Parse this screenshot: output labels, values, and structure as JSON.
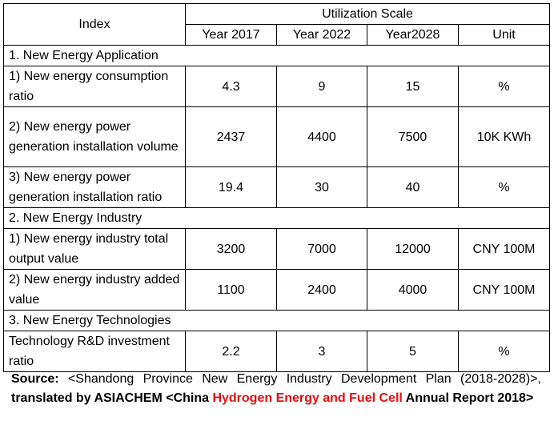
{
  "table": {
    "index_header": "Index",
    "group_header": "Utilization Scale",
    "columns": [
      "Year 2017",
      "Year 2022",
      "Year2028",
      "Unit"
    ],
    "sections": [
      {
        "title": "1. New Energy Application",
        "rows": [
          {
            "label": "1) New energy consumption ratio",
            "values": [
              "4.3",
              "9",
              "15",
              "%"
            ]
          },
          {
            "label": "2) New energy power generation installation volume",
            "values": [
              "2437",
              "4400",
              "7500",
              "10K KWh"
            ]
          },
          {
            "label": "3) New energy power generation installation ratio",
            "values": [
              "19.4",
              "30",
              "40",
              "%"
            ]
          }
        ]
      },
      {
        "title": "2. New Energy Industry",
        "rows": [
          {
            "label": "1) New energy industry total output value",
            "values": [
              "3200",
              "7000",
              "12000",
              "CNY 100M"
            ]
          },
          {
            "label": "2) New energy industry added value",
            "values": [
              "1100",
              "2400",
              "4000",
              "CNY 100M"
            ]
          }
        ]
      },
      {
        "title": "3. New Energy Technologies",
        "rows": [
          {
            "label": "Technology R&D investment ratio",
            "values": [
              "2.2",
              "3",
              "5",
              "%"
            ]
          }
        ]
      }
    ]
  },
  "source": {
    "prefix": "Source:",
    "text1": " <Shandong Province New Energy Industry Development Plan (2018-2028)>, ",
    "translated": "translated by ASIACHEM <China ",
    "highlight": "Hydrogen Energy and Fuel Cell",
    "suffix": " Annual Report 2018>",
    "highlight_color": "#e01010"
  }
}
